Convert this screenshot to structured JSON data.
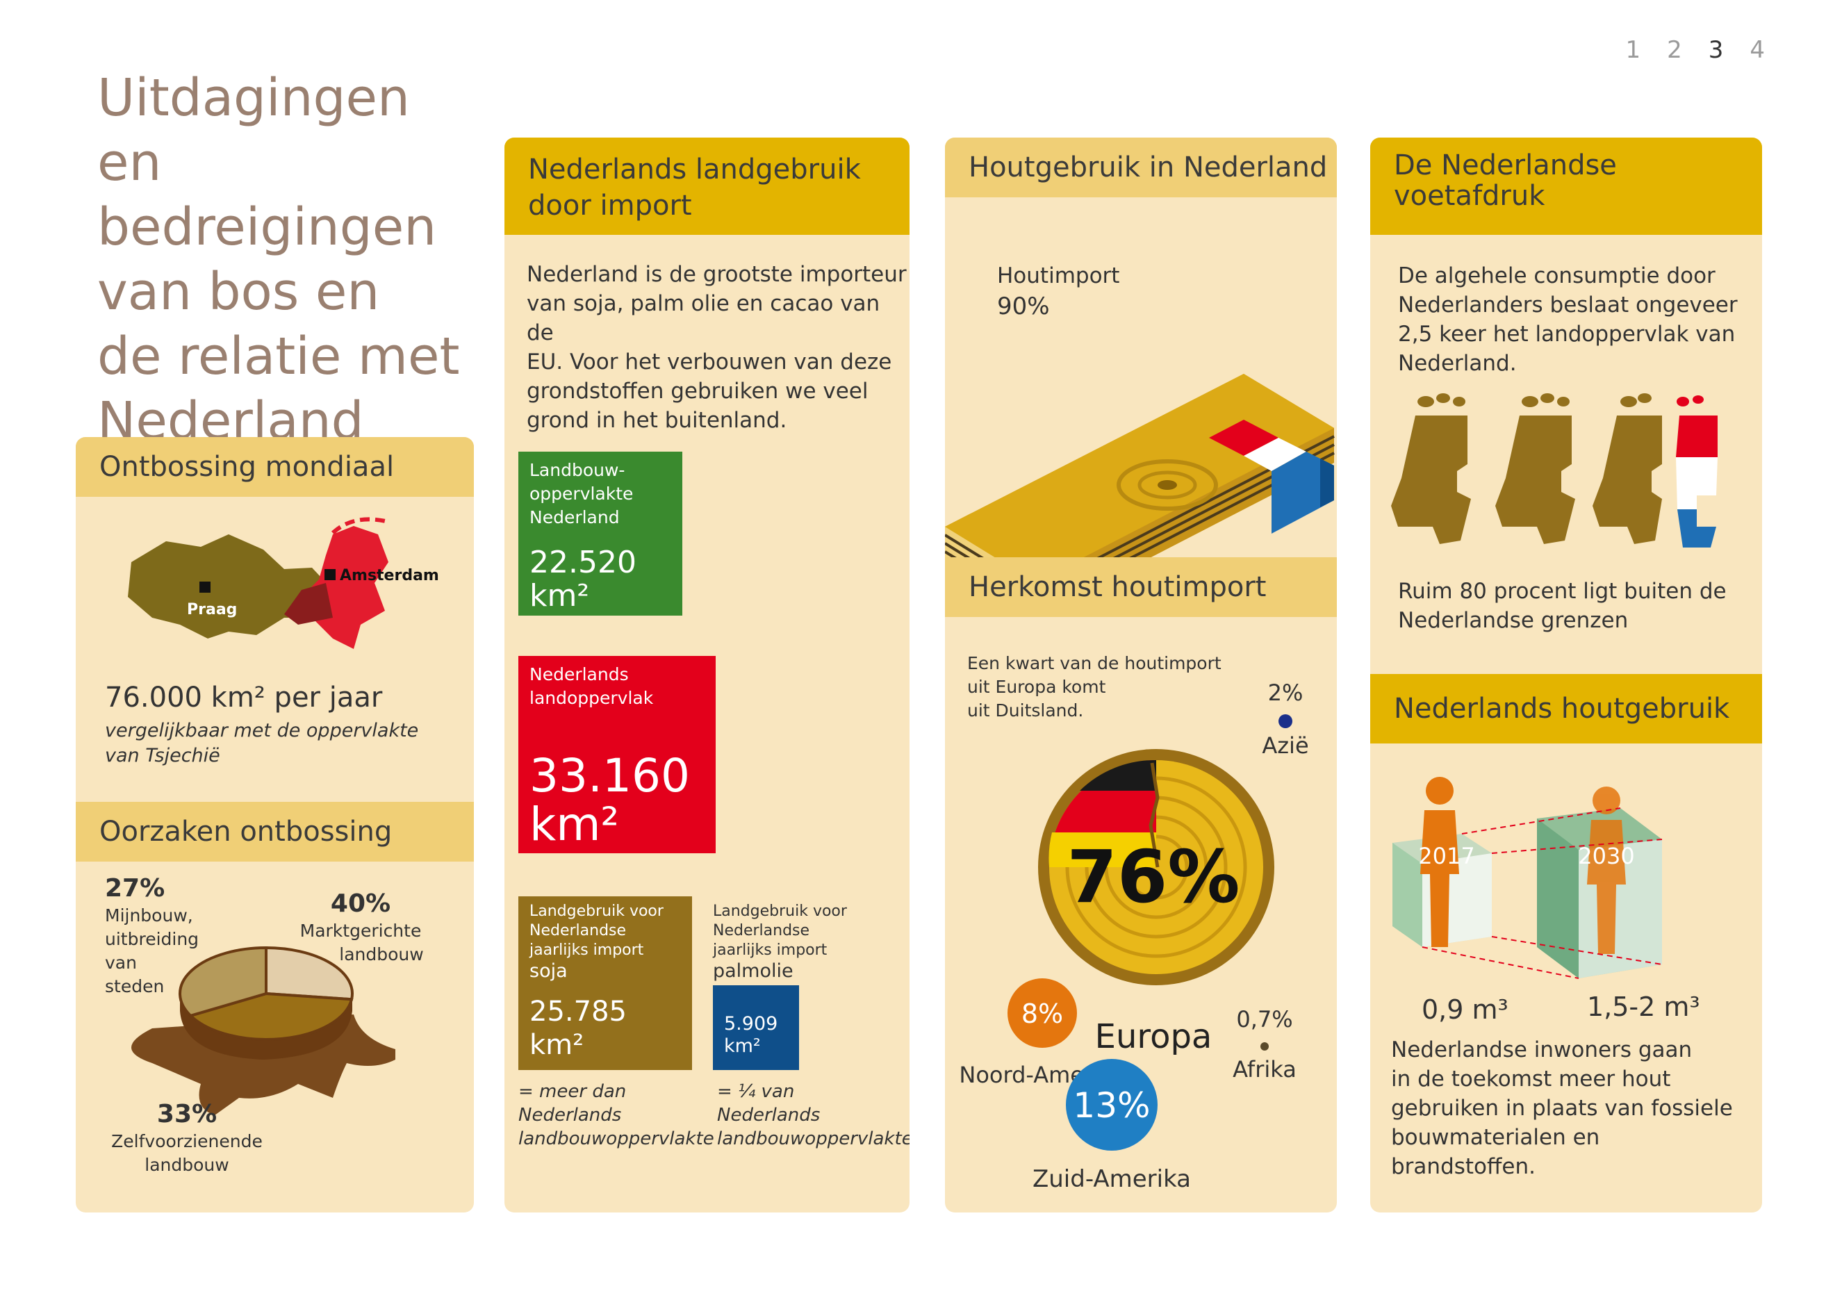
{
  "pager": [
    "1",
    "2",
    "3",
    "4"
  ],
  "title": [
    "Uitdagingen",
    "en bedreigingen",
    "van bos en",
    "de relatie met",
    "Nederland"
  ],
  "ontbossing": {
    "header": "Ontbossing mondiaal",
    "map_label_praag": "Praag",
    "map_label_amsterdam": "Amsterdam",
    "area": "76.000 km² per jaar",
    "compare_1": "vergelijkbaar met de oppervlakte",
    "compare_2": "van Tsjechië"
  },
  "oorzaken": {
    "header": "Oorzaken ontbossing",
    "slices": [
      {
        "pct": "27%",
        "label": [
          "Mijnbouw,",
          "uitbreiding",
          "van",
          "steden"
        ],
        "value": 27,
        "color": "#e3ceaa"
      },
      {
        "pct": "40%",
        "label": [
          "Marktgerichte",
          "landbouw"
        ],
        "value": 40,
        "color": "#9a6f16"
      },
      {
        "pct": "33%",
        "label": [
          "Zelfvoorzienende",
          "landbouw"
        ],
        "value": 33,
        "color": "#b59a5a"
      }
    ]
  },
  "landgebruik": {
    "header_1": "Nederlands landgebruik",
    "header_2": "door import",
    "intro": [
      "Nederland is de grootste importeur",
      "van soja, palm olie en cacao van de",
      "EU. Voor het verbouwen van deze",
      "grondstoffen gebruiken we veel",
      "grond in het buitenland."
    ],
    "landbouw_label": [
      "Landbouw-",
      "oppervlakte",
      "Nederland"
    ],
    "landbouw_num": [
      "22.520",
      "km²"
    ],
    "landopp_label": [
      "Nederlands",
      "landoppervlak"
    ],
    "landopp_num": [
      "33.160",
      "km²"
    ],
    "soja_label": [
      "Landgebruik voor",
      "Nederlandse",
      "jaarlijks import",
      "soja"
    ],
    "soja_num": [
      "25.785",
      "km²"
    ],
    "palm_label": [
      "Landgebruik voor",
      "Nederlandse",
      "jaarlijks import",
      "palmolie"
    ],
    "palm_num": [
      "5.909",
      "km²"
    ],
    "soja_note": [
      "= meer dan",
      "Nederlands",
      "landbouwoppervlakte"
    ],
    "palm_note": [
      "= ¼ van",
      "Nederlands",
      "landbouwoppervlakte"
    ]
  },
  "houtgebruik": {
    "header": "Houtgebruik in Nederland",
    "import_label": "Houtimport",
    "import_pct": "90%"
  },
  "herkomst": {
    "header": "Herkomst houtimport",
    "note": [
      "Een kwart van de houtimport",
      "uit Europa komt",
      "uit Duitsland."
    ],
    "europa_pct": "76%",
    "europa": "Europa",
    "azie_pct": "2%",
    "azie": "Azië",
    "noord_pct": "8%",
    "noord": "Noord-Amerika",
    "afrika_pct": "0,7%",
    "afrika": "Afrika",
    "zuid_pct": "13%",
    "zuid": "Zuid-Amerika"
  },
  "voetafdruk": {
    "header_1": "De Nederlandse",
    "header_2": "voetafdruk",
    "intro": [
      "De algehele consumptie door",
      "Nederlanders beslaat ongeveer",
      "2,5 keer het landoppervlak van",
      "Nederland."
    ],
    "note": [
      "Ruim 80 procent ligt buiten de",
      "Nederlandse grenzen"
    ]
  },
  "nl_houtgebruik": {
    "header": "Nederlands houtgebruik",
    "year_1": "2017",
    "year_2": "2030",
    "vol_1": "0,9 m³",
    "vol_2": "1,5-2 m³",
    "text": [
      "Nederlandse inwoners gaan",
      "in de toekomst meer hout",
      "gebruiken in plaats van fossiele",
      "bouwmaterialen en",
      "brandstoffen."
    ]
  },
  "colors": {
    "gold": "#e3b400",
    "light_gold": "#f0cf76",
    "panel": "#f9e6bf",
    "green": "#3a8a2e",
    "red": "#e3001b",
    "brown": "#93701c",
    "blue": "#0f4f8a",
    "orange": "#e4760e",
    "sky": "#1f7fc4"
  }
}
